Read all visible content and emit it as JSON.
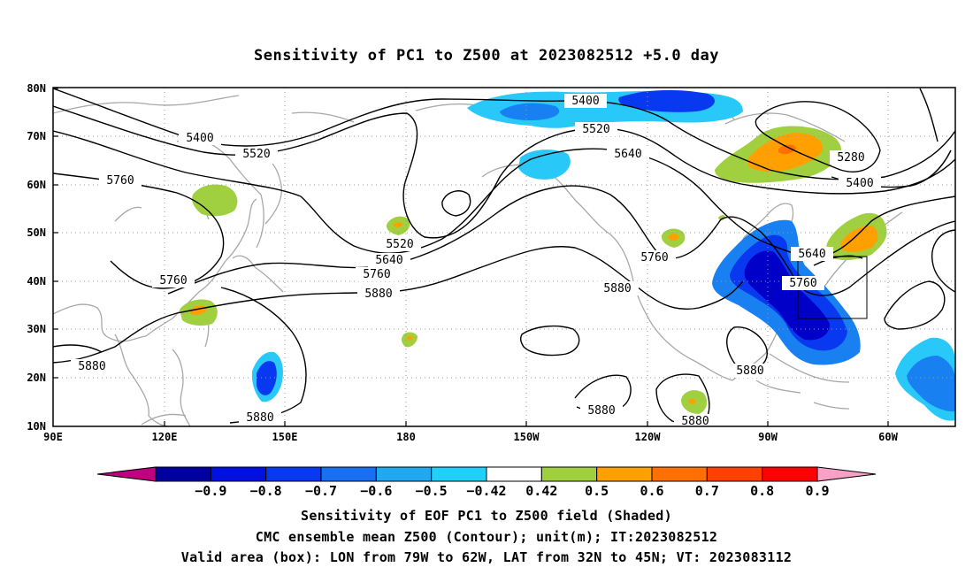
{
  "title": "Sensitivity of PC1 to Z500 at 2023082512 +5.0 day",
  "map": {
    "projection": "cylindrical equidistant",
    "lon_range": [
      "90E",
      "50W"
    ],
    "lat_range": [
      "10N",
      "80N"
    ],
    "grid": true,
    "lon_ticks": [
      "90E",
      "120E",
      "150E",
      "180",
      "150W",
      "120W",
      "90W",
      "60W"
    ],
    "lat_ticks": [
      "10N",
      "20N",
      "30N",
      "40N",
      "50N",
      "60N",
      "70N",
      "80N"
    ],
    "contour_labels": [
      "5400",
      "5520",
      "5760",
      "5640",
      "5280",
      "5400",
      "5520",
      "5640",
      "5760",
      "5880",
      "5760",
      "5640",
      "5760",
      "5880",
      "5880",
      "5880",
      "5880",
      "5880",
      "5880",
      "5760",
      "5640",
      "5520",
      "5400"
    ],
    "valid_box": {
      "lon_min": -79,
      "lon_max": -62,
      "lat_min": 32,
      "lat_max": 45
    }
  },
  "colorbar": {
    "tick_labels": [
      "−0.9",
      "−0.8",
      "−0.7",
      "−0.6",
      "−0.5",
      "−0.42",
      "0.42",
      "0.5",
      "0.6",
      "0.7",
      "0.8",
      "0.9"
    ],
    "colors": [
      "#c00080",
      "#0000a0",
      "#0010e0",
      "#0838f0",
      "#1870f0",
      "#20a8f0",
      "#20d0f8",
      "#ffffff",
      "#a0d040",
      "#ffa000",
      "#ff7000",
      "#ff4000",
      "#ff0000",
      "#f8a0c8"
    ]
  },
  "shading_colors": {
    "neg_strong": "#0000c8",
    "neg_mid": "#0838f0",
    "neg_light": "#1880f0",
    "neg_weak": "#28c8f8",
    "pos_weak": "#a0d040",
    "pos_mid": "#ffa000",
    "pos_strong": "#ff6000"
  },
  "captions": {
    "line1": "Sensitivity of EOF PC1 to Z500 field (Shaded)",
    "line2": "CMC ensemble mean Z500 (Contour); unit(m); IT:2023082512",
    "line3": "Valid area (box): LON from 79W to 62W, LAT from 32N to 45N; VT: 2023083112"
  }
}
